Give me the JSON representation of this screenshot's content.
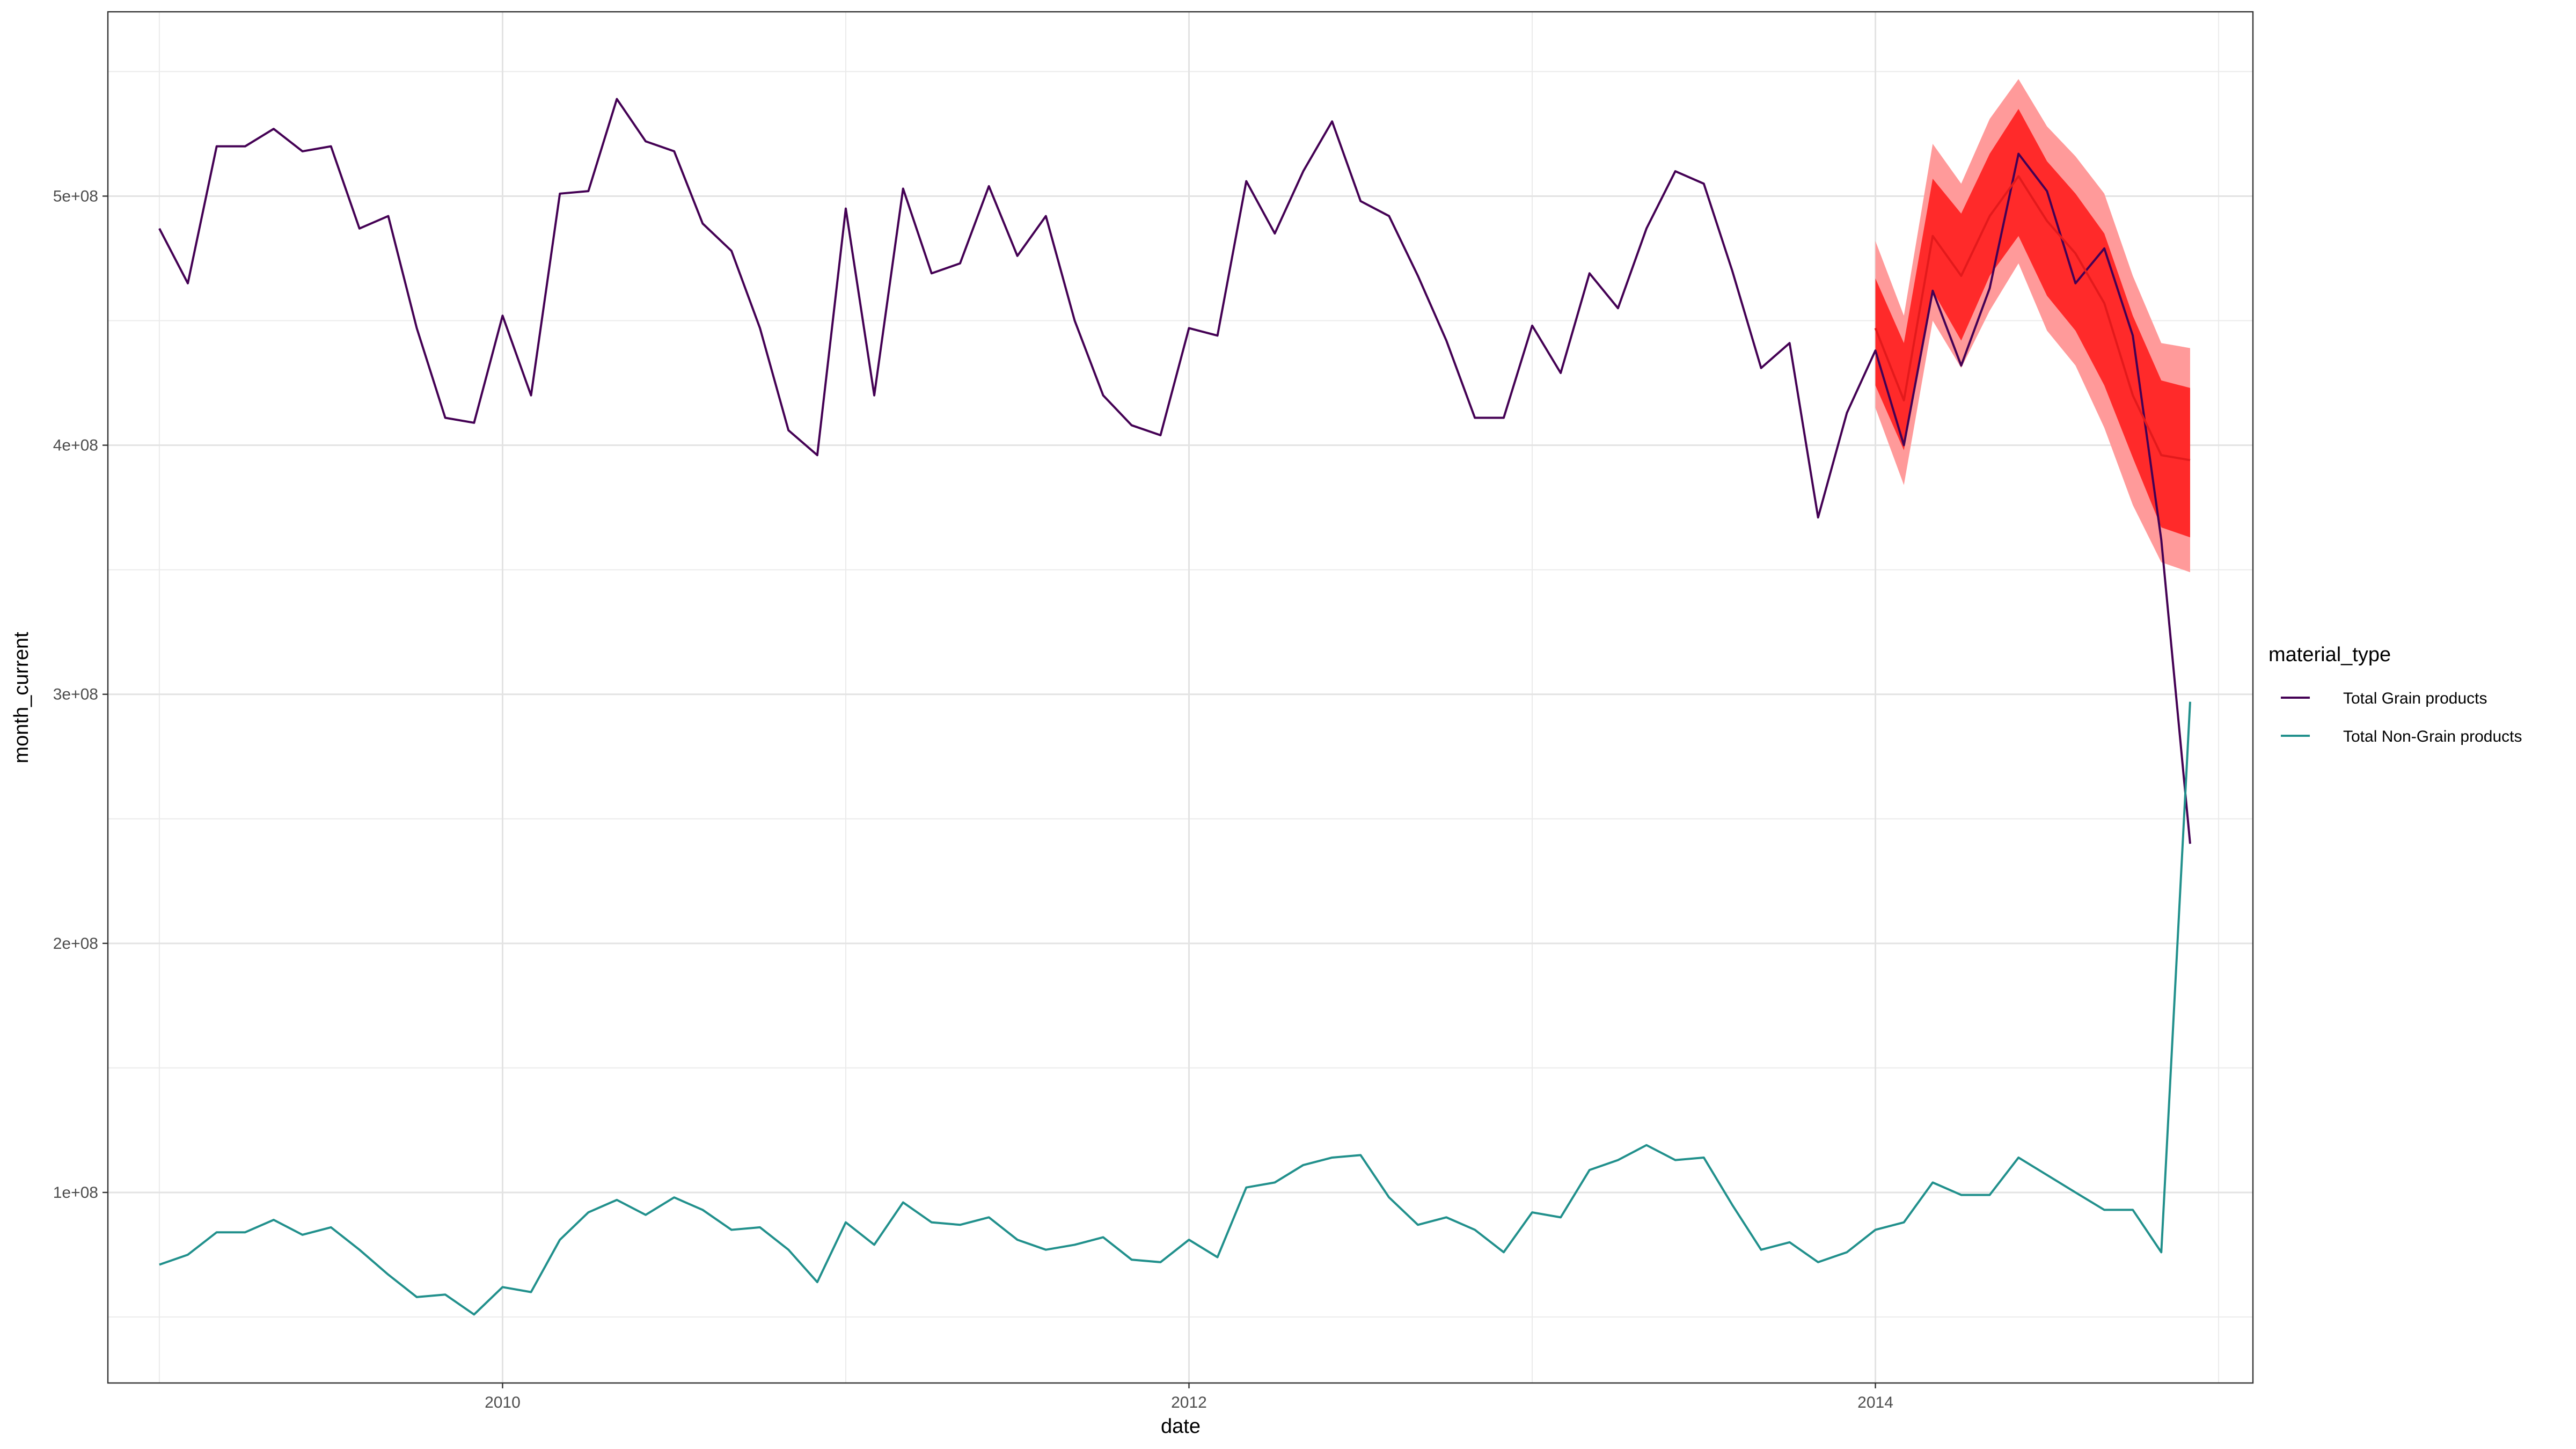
{
  "chart_data": {
    "type": "line",
    "xlabel": "date",
    "ylabel": "month_current",
    "xlim": [
      2008.85,
      2015.1
    ],
    "ylim": [
      23500000,
      574000000
    ],
    "x_ticks": [
      2010,
      2012,
      2014
    ],
    "x_tick_labels": [
      "2010",
      "2012",
      "2014"
    ],
    "y_ticks": [
      100000000,
      200000000,
      300000000,
      400000000,
      500000000
    ],
    "y_tick_labels": [
      "1e+08",
      "2e+08",
      "3e+08",
      "4e+08",
      "5e+08"
    ],
    "grid": true,
    "legend": {
      "title": "material_type",
      "position": "right"
    },
    "colors": {
      "grain": "#440154",
      "non_grain": "#21908c",
      "forecast_line": "#e31a1c",
      "band_80": "#ff2a2a",
      "band_95": "#ff9a9a"
    },
    "x": [
      2009.0,
      2009.083,
      2009.167,
      2009.25,
      2009.333,
      2009.417,
      2009.5,
      2009.583,
      2009.667,
      2009.75,
      2009.833,
      2009.917,
      2010.0,
      2010.083,
      2010.167,
      2010.25,
      2010.333,
      2010.417,
      2010.5,
      2010.583,
      2010.667,
      2010.75,
      2010.833,
      2010.917,
      2011.0,
      2011.083,
      2011.167,
      2011.25,
      2011.333,
      2011.417,
      2011.5,
      2011.583,
      2011.667,
      2011.75,
      2011.833,
      2011.917,
      2012.0,
      2012.083,
      2012.167,
      2012.25,
      2012.333,
      2012.417,
      2012.5,
      2012.583,
      2012.667,
      2012.75,
      2012.833,
      2012.917,
      2013.0,
      2013.083,
      2013.167,
      2013.25,
      2013.333,
      2013.417,
      2013.5,
      2013.583,
      2013.667,
      2013.75,
      2013.833,
      2013.917,
      2014.0,
      2014.083,
      2014.167,
      2014.25,
      2014.333,
      2014.417,
      2014.5,
      2014.583,
      2014.667,
      2014.75,
      2014.833,
      2014.917
    ],
    "series": [
      {
        "name": "Total Grain products",
        "values": [
          487000000,
          465000000,
          520000000,
          520000000,
          527000000,
          518000000,
          520000000,
          487000000,
          492000000,
          447000000,
          411000000,
          409000000,
          452000000,
          420000000,
          501000000,
          502000000,
          539000000,
          522000000,
          518000000,
          489000000,
          478000000,
          447000000,
          406000000,
          396000000,
          495000000,
          420000000,
          503000000,
          469000000,
          473000000,
          504000000,
          476000000,
          492000000,
          450000000,
          420000000,
          408000000,
          404000000,
          447000000,
          444000000,
          506000000,
          485000000,
          510000000,
          530000000,
          498000000,
          492000000,
          468000000,
          442000000,
          411000000,
          411000000,
          448000000,
          429000000,
          469000000,
          455000000,
          487000000,
          510000000,
          505000000,
          470000000,
          431000000,
          441000000,
          371000000,
          413000000,
          438000000,
          400000000,
          462000000,
          432000000,
          463000000,
          517000000,
          502000000,
          465000000,
          479000000,
          444000000,
          362000000,
          240000000
        ]
      },
      {
        "name": "Total Non-Grain products",
        "values": [
          71000000,
          75000000,
          84000000,
          84000000,
          89000000,
          83000000,
          86000000,
          77000000,
          67000000,
          58000000,
          59000000,
          51000000,
          62000000,
          60000000,
          81000000,
          92000000,
          97000000,
          91000000,
          98000000,
          93000000,
          85000000,
          86000000,
          77000000,
          64000000,
          88000000,
          79000000,
          96000000,
          88000000,
          87000000,
          90000000,
          81000000,
          77000000,
          79000000,
          82000000,
          73000000,
          72000000,
          81000000,
          74000000,
          102000000,
          104000000,
          111000000,
          114000000,
          115000000,
          98000000,
          87000000,
          90000000,
          85000000,
          76000000,
          92000000,
          90000000,
          109000000,
          113000000,
          119000000,
          113000000,
          114000000,
          95000000,
          77000000,
          80000000,
          72000000,
          76000000,
          85000000,
          88000000,
          104000000,
          99000000,
          99000000,
          114000000,
          107000000,
          100000000,
          93000000,
          93000000,
          76000000,
          297000000
        ]
      }
    ],
    "forecast": {
      "x": [
        2014.0,
        2014.083,
        2014.167,
        2014.25,
        2014.333,
        2014.417,
        2014.5,
        2014.583,
        2014.667,
        2014.75,
        2014.833,
        2014.917
      ],
      "mean": [
        447000000,
        418000000,
        484000000,
        468000000,
        492000000,
        508000000,
        490000000,
        477000000,
        457000000,
        420000000,
        396000000,
        394000000
      ],
      "lo80": [
        424000000,
        398000000,
        462000000,
        442000000,
        468000000,
        484000000,
        460000000,
        446000000,
        424000000,
        395000000,
        367000000,
        363000000
      ],
      "hi80": [
        467000000,
        441000000,
        507000000,
        493000000,
        517000000,
        535000000,
        514000000,
        501000000,
        485000000,
        452000000,
        426000000,
        423000000
      ],
      "lo95": [
        415000000,
        384000000,
        450000000,
        431000000,
        454000000,
        473000000,
        446000000,
        432000000,
        407000000,
        376000000,
        353000000,
        349000000
      ],
      "hi95": [
        482000000,
        452000000,
        521000000,
        505000000,
        531000000,
        547000000,
        528000000,
        516000000,
        501000000,
        468000000,
        441000000,
        439000000
      ]
    }
  }
}
